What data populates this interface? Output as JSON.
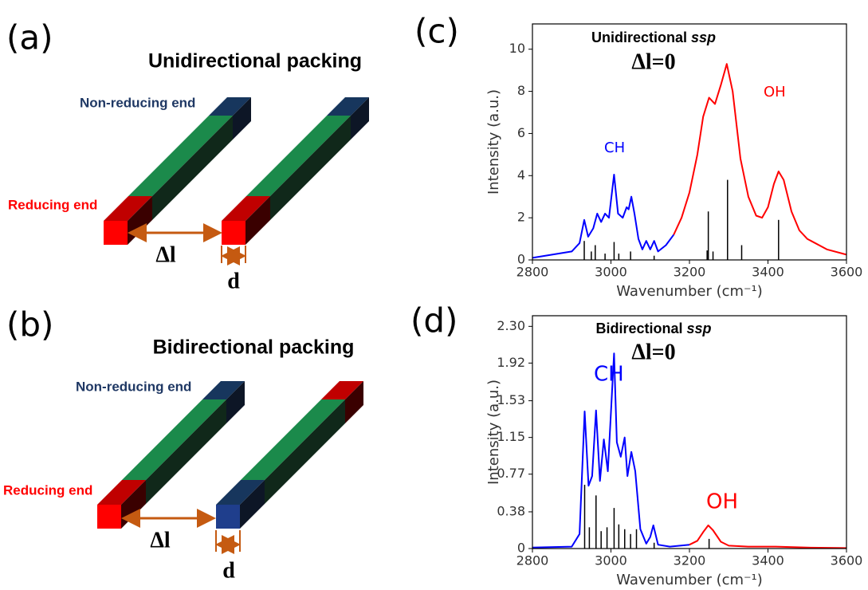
{
  "panels": [
    {
      "label": "(a)",
      "title": "Unidirectional packing",
      "top_label": "Non-reducing end",
      "bottom_label": "Reducing end",
      "gap": "Δl",
      "width": "d"
    },
    {
      "label": "(b)",
      "title": "Bidirectional packing",
      "top_label": "Non-reducing end",
      "bottom_label": "Reducing end",
      "gap": "Δl",
      "width": "d"
    }
  ],
  "chart_data": [
    {
      "type": "line",
      "label": "(c)",
      "title": "Unidirectional",
      "title_italic": "ssp",
      "subtitle": "Δl=0",
      "x_label": "Wavenumber (cm⁻¹)",
      "y_label": "Intensity (a.u.)",
      "ch_label": "CH",
      "oh_label": "OH",
      "xlim": [
        2800,
        3600
      ],
      "xticks": [
        2800,
        3000,
        3200,
        3400,
        3600
      ],
      "ylim": [
        0,
        11.2
      ],
      "yticks": [
        0,
        2,
        4,
        6,
        8,
        10
      ],
      "series": [
        {
          "name": "CH",
          "color": "#0000ff",
          "x": [
            2800,
            2900,
            2920,
            2932,
            2942,
            2955,
            2965,
            2975,
            2985,
            2995,
            3008,
            3018,
            3030,
            3040,
            3045,
            3052,
            3060,
            3070,
            3080,
            3090,
            3100,
            3110,
            3120,
            3140,
            3160
          ],
          "values": [
            0.1,
            0.4,
            0.8,
            1.9,
            1.1,
            1.5,
            2.2,
            1.8,
            2.2,
            2.0,
            4.05,
            2.2,
            2.0,
            2.5,
            2.4,
            3.0,
            2.2,
            1.0,
            0.5,
            0.9,
            0.5,
            0.9,
            0.4,
            0.7,
            1.2
          ]
        },
        {
          "name": "OH",
          "color": "#ff0000",
          "x": [
            3160,
            3180,
            3200,
            3220,
            3235,
            3250,
            3265,
            3280,
            3295,
            3310,
            3330,
            3350,
            3370,
            3385,
            3400,
            3415,
            3427,
            3440,
            3460,
            3480,
            3500,
            3550,
            3600
          ],
          "values": [
            1.2,
            2.0,
            3.2,
            5.0,
            6.8,
            7.7,
            7.4,
            8.3,
            9.3,
            8.0,
            4.8,
            3.0,
            2.1,
            2.0,
            2.5,
            3.6,
            4.2,
            3.8,
            2.3,
            1.4,
            1.0,
            0.5,
            0.25
          ]
        },
        {
          "name": "modes",
          "style": "stick",
          "color": "#000000",
          "x": [
            2932,
            2950,
            2960,
            2985,
            3008,
            3020,
            3050,
            3110,
            3245,
            3248,
            3260,
            3297,
            3333,
            3427
          ],
          "values": [
            0.9,
            0.4,
            0.7,
            0.3,
            0.85,
            0.3,
            0.4,
            0.2,
            0.45,
            2.3,
            0.4,
            3.8,
            0.7,
            1.9
          ]
        }
      ]
    },
    {
      "type": "line",
      "label": "(d)",
      "title": "Bidirectional",
      "title_italic": "ssp",
      "subtitle": "Δl=0",
      "x_label": "Wavenumber (cm⁻¹)",
      "y_label": "Intensity (a.u.)",
      "ch_label": "CH",
      "oh_label": "OH",
      "xlim": [
        2800,
        3600
      ],
      "xticks": [
        2800,
        3000,
        3200,
        3400,
        3600
      ],
      "ylim": [
        0,
        2.41
      ],
      "yticks": [
        0,
        0.38,
        0.77,
        1.15,
        1.53,
        1.92,
        {
          "value": 2.3,
          "label": "2.30"
        }
      ],
      "series": [
        {
          "name": "CH",
          "color": "#0000ff",
          "x": [
            2800,
            2900,
            2920,
            2933,
            2943,
            2952,
            2962,
            2972,
            2982,
            2992,
            3008,
            3015,
            3025,
            3035,
            3042,
            3052,
            3062,
            3075,
            3090,
            3100,
            3108,
            3120,
            3150,
            3200
          ],
          "values": [
            0.01,
            0.02,
            0.15,
            1.42,
            0.65,
            0.75,
            1.43,
            0.7,
            1.13,
            0.8,
            2.02,
            1.1,
            0.95,
            1.15,
            0.75,
            1.0,
            0.8,
            0.2,
            0.05,
            0.12,
            0.24,
            0.04,
            0.02,
            0.04
          ]
        },
        {
          "name": "OH",
          "color": "#ff0000",
          "x": [
            3200,
            3220,
            3235,
            3248,
            3260,
            3280,
            3300,
            3350,
            3420,
            3500,
            3600
          ],
          "values": [
            0.04,
            0.08,
            0.17,
            0.24,
            0.19,
            0.07,
            0.03,
            0.02,
            0.02,
            0.01,
            0.005
          ]
        },
        {
          "name": "modes",
          "style": "stick",
          "color": "#000000",
          "x": [
            2933,
            2945,
            2962,
            2975,
            2990,
            3008,
            3020,
            3035,
            3050,
            3065,
            3110,
            3250
          ],
          "values": [
            0.66,
            0.22,
            0.55,
            0.18,
            0.22,
            0.42,
            0.25,
            0.2,
            0.15,
            0.2,
            0.06,
            0.1
          ]
        }
      ]
    }
  ]
}
